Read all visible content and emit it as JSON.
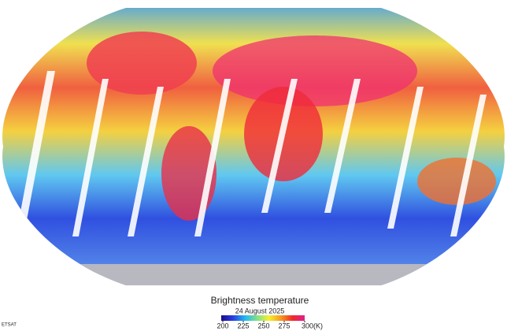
{
  "map": {
    "title": "Brightness temperature",
    "date": "24 August 2025",
    "credit": "ETSAT",
    "colorbar": {
      "range": [
        200,
        300
      ],
      "ticks": [
        200,
        225,
        250,
        275,
        {
          "value": 300,
          "label": "300(K)"
        }
      ],
      "colors": [
        "#1a0a8c",
        "#2b3fe0",
        "#22b8f0",
        "#7ee08a",
        "#f5f030",
        "#f79a1e",
        "#ee2a2a",
        "#e0208c"
      ]
    }
  }
}
